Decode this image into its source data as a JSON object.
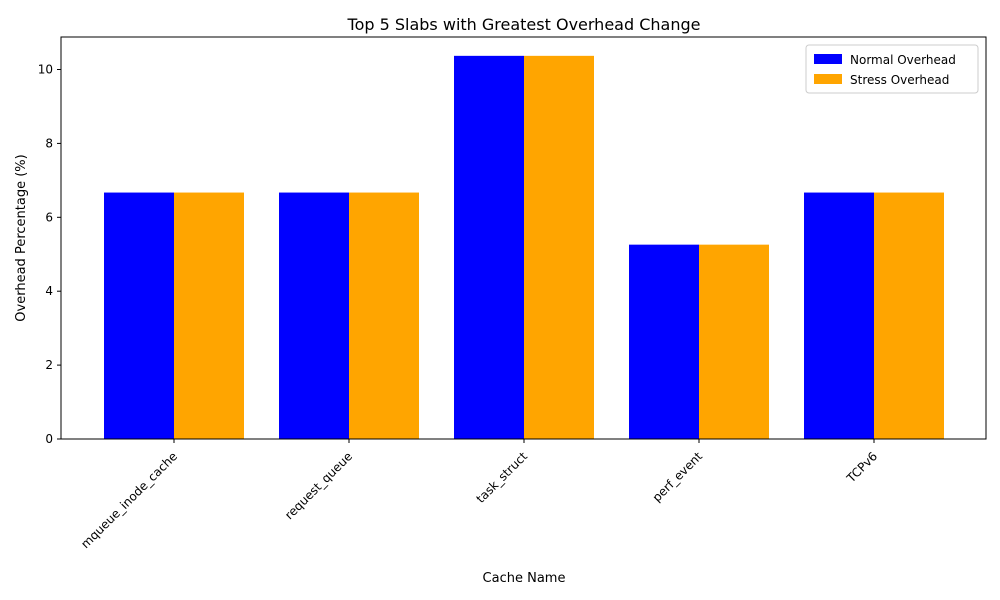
{
  "chart_data": {
    "type": "bar",
    "title": "Top 5 Slabs with Greatest Overhead Change",
    "xlabel": "Cache Name",
    "ylabel": "Overhead Percentage (%)",
    "categories": [
      "mqueue_inode_cache",
      "request_queue",
      "task_struct",
      "perf_event",
      "TCPv6"
    ],
    "series": [
      {
        "name": "Normal Overhead",
        "color": "#0000ff",
        "values": [
          6.67,
          6.67,
          10.37,
          5.26,
          6.67
        ]
      },
      {
        "name": "Stress Overhead",
        "color": "#ffa500",
        "values": [
          6.67,
          6.67,
          10.37,
          5.26,
          6.67
        ]
      }
    ],
    "ylim": [
      0,
      10.88
    ],
    "yticks": [
      0,
      2,
      4,
      6,
      8,
      10
    ],
    "grid": false,
    "legend_position": "top-right"
  }
}
